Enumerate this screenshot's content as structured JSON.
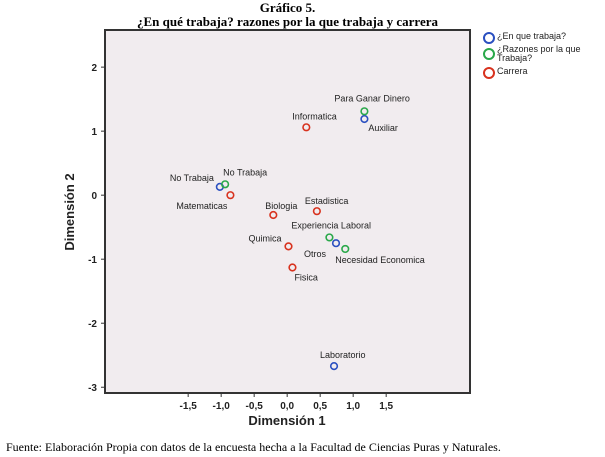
{
  "title_line1": "Gráfico 5.",
  "title_line2": "¿En qué trabaja? razones por la que trabaja y carrera",
  "source": "Fuente: Elaboración Propia con datos de la encuesta hecha a la Facultad de Ciencias Puras y Naturales.",
  "chart_data": {
    "type": "scatter",
    "title": "¿En qué trabaja? razones por la que trabaja y carrera",
    "xlabel": "Dimensión 1",
    "ylabel": "Dimensión 2",
    "xlim": [
      -2.76,
      2.77
    ],
    "ylim": [
      -3.09,
      2.58
    ],
    "xticks": [
      "-1,5",
      "-1,0",
      "-0,5",
      "0,0",
      "0,5",
      "1,0",
      "1,5"
    ],
    "xtick_values": [
      -1.5,
      -1.0,
      -0.5,
      0,
      0.5,
      1.0,
      1.5
    ],
    "yticks": [
      "2",
      "1",
      "0",
      "-1",
      "-2",
      "-3"
    ],
    "ytick_values": [
      2,
      1,
      0,
      -1,
      -2,
      -3
    ],
    "legend_position": "top-right, outside",
    "series": [
      {
        "name": "¿En que trabaja?",
        "color": "#2a4fc0",
        "points": [
          {
            "label": "No Trabaja",
            "x": -1.02,
            "y": 0.13
          },
          {
            "label": "Auxiliar",
            "x": 1.17,
            "y": 1.19
          },
          {
            "label": "Otros",
            "x": 0.74,
            "y": -0.75
          },
          {
            "label": "Laboratorio",
            "x": 0.71,
            "y": -2.67
          }
        ]
      },
      {
        "name": "¿Razones por la que Trabaja?",
        "color": "#2aa84a",
        "points": [
          {
            "label": "No Trabaja",
            "x": -0.94,
            "y": 0.17
          },
          {
            "label": "Para Ganar Dinero",
            "x": 1.17,
            "y": 1.31
          },
          {
            "label": "Experiencia Laboral",
            "x": 0.64,
            "y": -0.66
          },
          {
            "label": "Necesidad Economica",
            "x": 0.88,
            "y": -0.84
          }
        ]
      },
      {
        "name": "Carrera",
        "color": "#d8321e",
        "points": [
          {
            "label": "Informatica",
            "x": 0.29,
            "y": 1.06
          },
          {
            "label": "Matematicas",
            "x": -0.86,
            "y": 0.0
          },
          {
            "label": "Biologia",
            "x": -0.21,
            "y": -0.31
          },
          {
            "label": "Estadistica",
            "x": 0.45,
            "y": -0.25
          },
          {
            "label": "Quimica",
            "x": 0.02,
            "y": -0.8
          },
          {
            "label": "Fisica",
            "x": 0.08,
            "y": -1.13
          }
        ]
      }
    ]
  }
}
